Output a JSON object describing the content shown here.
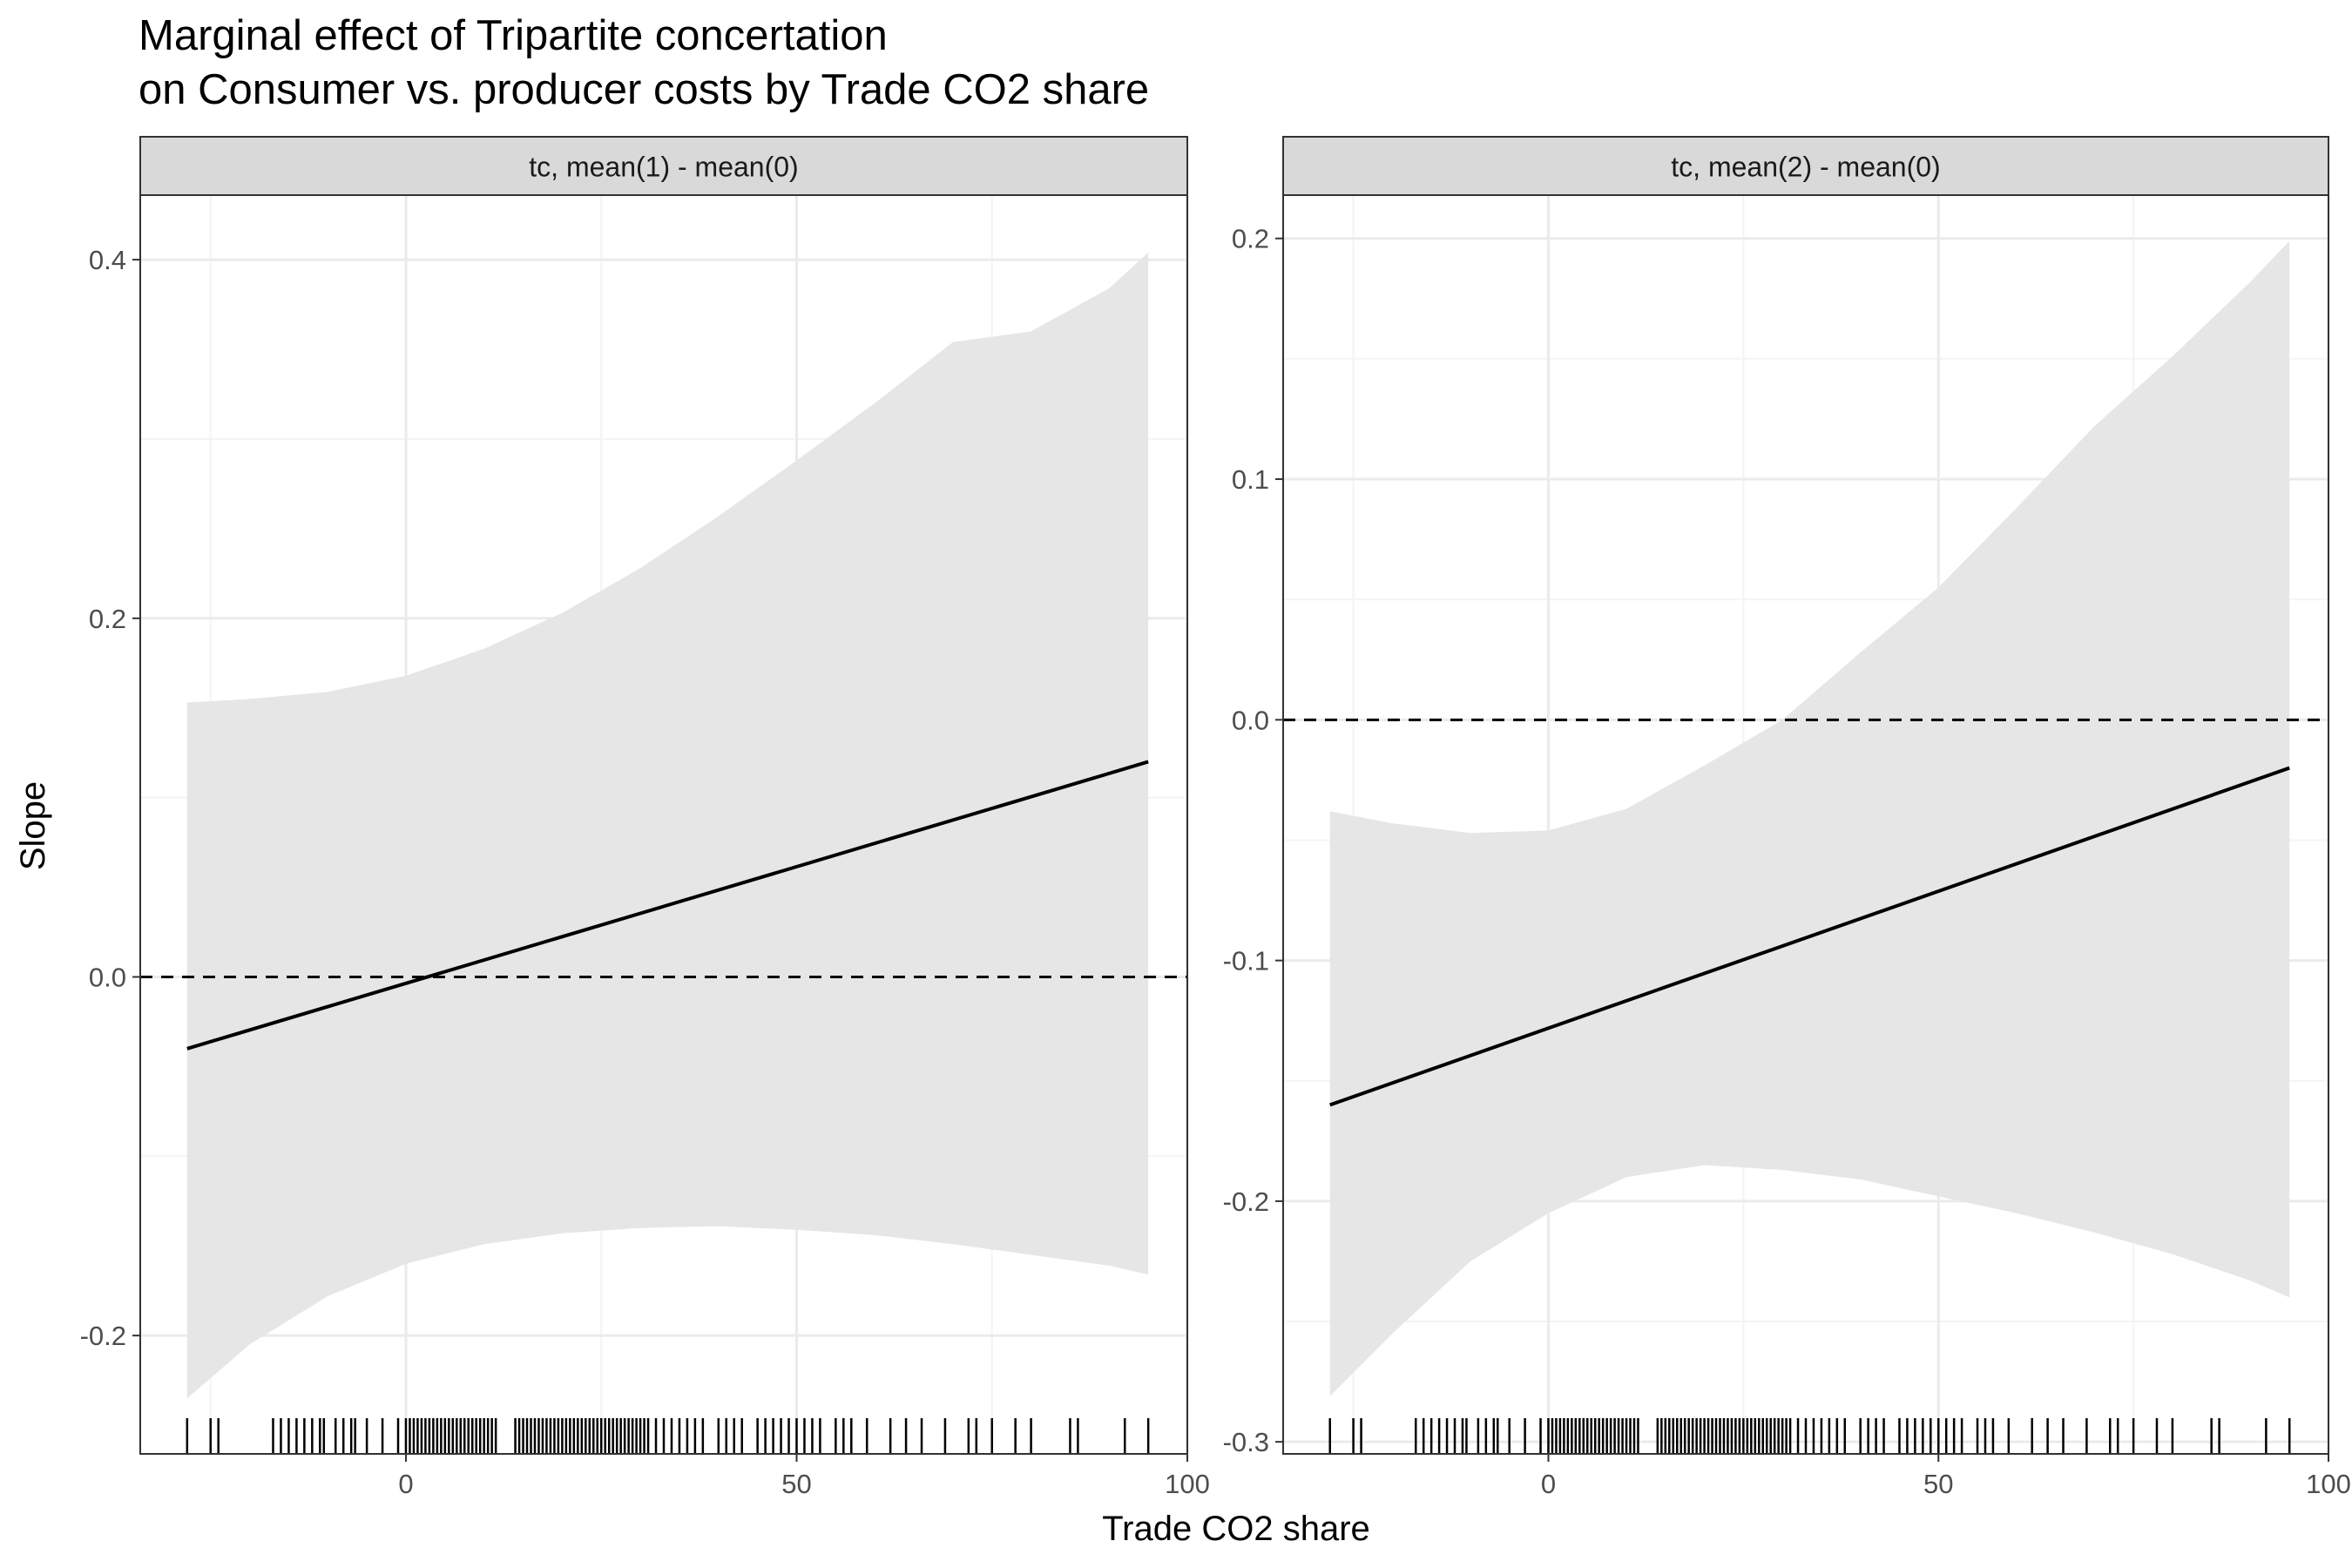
{
  "title_line1": "Marginal effect of Tripartite concertation",
  "title_line2": "on Consumer vs. producer costs by Trade CO2 share",
  "xlabel": "Trade CO2 share",
  "ylabel": "Slope",
  "colors": {
    "ribbon": "#e6e6e6",
    "line": "#000000",
    "grid_major": "#ebebeb",
    "grid_minor": "#f4f4f4",
    "strip_fill": "#d9d9d9",
    "panel_border": "#333333",
    "axis_text": "#4d4d4d"
  },
  "chart_data": [
    {
      "type": "line",
      "facet_label": "tc, mean(1) - mean(0)",
      "xlim": [
        -34,
        100
      ],
      "ylim": [
        -0.266,
        0.436
      ],
      "x_ticks": [
        0,
        50,
        100
      ],
      "x_tick_labels": [
        "0",
        "50",
        "100"
      ],
      "y_ticks": [
        -0.2,
        0.0,
        0.2,
        0.4
      ],
      "y_tick_labels": [
        "-0.2",
        "0.0",
        "0.2",
        "0.4"
      ],
      "reference_line": 0,
      "line": {
        "x": [
          -28,
          95
        ],
        "y": [
          -0.04,
          0.12
        ]
      },
      "ribbon": {
        "x": [
          -28,
          -20,
          -10,
          0,
          10,
          20,
          30,
          40,
          50,
          60,
          70,
          80,
          90,
          95
        ],
        "upper": [
          0.153,
          0.155,
          0.159,
          0.168,
          0.183,
          0.203,
          0.228,
          0.257,
          0.288,
          0.32,
          0.354,
          0.36,
          0.384,
          0.404
        ],
        "lower": [
          -0.235,
          -0.205,
          -0.178,
          -0.16,
          -0.149,
          -0.143,
          -0.14,
          -0.139,
          -0.141,
          -0.144,
          -0.149,
          -0.155,
          -0.161,
          -0.166
        ]
      },
      "rug_x": [
        -28,
        -25,
        -24,
        -17,
        -16,
        -15,
        -14,
        -13,
        -12,
        -11,
        -10.5,
        -9,
        -8,
        -7,
        -6.5,
        -5,
        -3,
        -1,
        0,
        0.5,
        1,
        1.5,
        2,
        2.5,
        3,
        3.5,
        4,
        4.5,
        5,
        5.5,
        6,
        6.5,
        7,
        7.5,
        8,
        8.5,
        9,
        9.5,
        10,
        10.5,
        11,
        11.5,
        14,
        14.5,
        15,
        15.5,
        16,
        16.5,
        17,
        17.5,
        18,
        18.5,
        19,
        19.5,
        20,
        20.5,
        21,
        21.5,
        22,
        22.5,
        23,
        23.5,
        24,
        24.5,
        25,
        25.5,
        26,
        26.5,
        27,
        27.5,
        28,
        28.5,
        29,
        29.5,
        30,
        30.5,
        31,
        32,
        33,
        34,
        35,
        36,
        37,
        38,
        40,
        41,
        42,
        43,
        45,
        46,
        47,
        48,
        49,
        50,
        51,
        52,
        53,
        55,
        56,
        57,
        59,
        62,
        64,
        66,
        69,
        72,
        73,
        75,
        78,
        80,
        85,
        86,
        92,
        95
      ]
    },
    {
      "type": "line",
      "facet_label": "tc, mean(2) - mean(0)",
      "xlim": [
        -34,
        100
      ],
      "ylim": [
        -0.305,
        0.218
      ],
      "x_ticks": [
        0,
        50,
        100
      ],
      "x_tick_labels": [
        "0",
        "50",
        "100"
      ],
      "y_ticks": [
        -0.3,
        -0.2,
        -0.1,
        0.0,
        0.1,
        0.2
      ],
      "y_tick_labels": [
        "-0.3",
        "-0.2",
        "-0.1",
        "0.0",
        "0.1",
        "0.2"
      ],
      "reference_line": 0,
      "line": {
        "x": [
          -28,
          95
        ],
        "y": [
          -0.16,
          -0.02
        ]
      },
      "ribbon": {
        "x": [
          -28,
          -20,
          -10,
          0,
          10,
          20,
          30,
          40,
          50,
          60,
          70,
          80,
          90,
          95
        ],
        "upper": [
          -0.038,
          -0.043,
          -0.047,
          -0.046,
          -0.037,
          -0.019,
          0.0,
          0.028,
          0.055,
          0.088,
          0.122,
          0.151,
          0.182,
          0.199
        ],
        "lower": [
          -0.281,
          -0.255,
          -0.225,
          -0.205,
          -0.19,
          -0.185,
          -0.187,
          -0.191,
          -0.198,
          -0.205,
          -0.213,
          -0.222,
          -0.233,
          -0.24
        ]
      },
      "rug_x": [
        -28,
        -25,
        -24,
        -17,
        -16,
        -15,
        -14,
        -13,
        -12,
        -11,
        -10.5,
        -9,
        -8,
        -7,
        -6.5,
        -5,
        -3,
        -1,
        0,
        0.5,
        1,
        1.5,
        2,
        2.5,
        3,
        3.5,
        4,
        4.5,
        5,
        5.5,
        6,
        6.5,
        7,
        7.5,
        8,
        8.5,
        9,
        9.5,
        10,
        10.5,
        11,
        11.5,
        14,
        14.5,
        15,
        15.5,
        16,
        16.5,
        17,
        17.5,
        18,
        18.5,
        19,
        19.5,
        20,
        20.5,
        21,
        21.5,
        22,
        22.5,
        23,
        23.5,
        24,
        24.5,
        25,
        25.5,
        26,
        26.5,
        27,
        27.5,
        28,
        28.5,
        29,
        29.5,
        30,
        30.5,
        31,
        32,
        33,
        34,
        35,
        36,
        37,
        38,
        40,
        41,
        42,
        43,
        45,
        46,
        47,
        48,
        49,
        50,
        51,
        52,
        53,
        55,
        56,
        57,
        59,
        62,
        64,
        66,
        69,
        72,
        73,
        75,
        78,
        80,
        85,
        86,
        92,
        95
      ]
    }
  ]
}
